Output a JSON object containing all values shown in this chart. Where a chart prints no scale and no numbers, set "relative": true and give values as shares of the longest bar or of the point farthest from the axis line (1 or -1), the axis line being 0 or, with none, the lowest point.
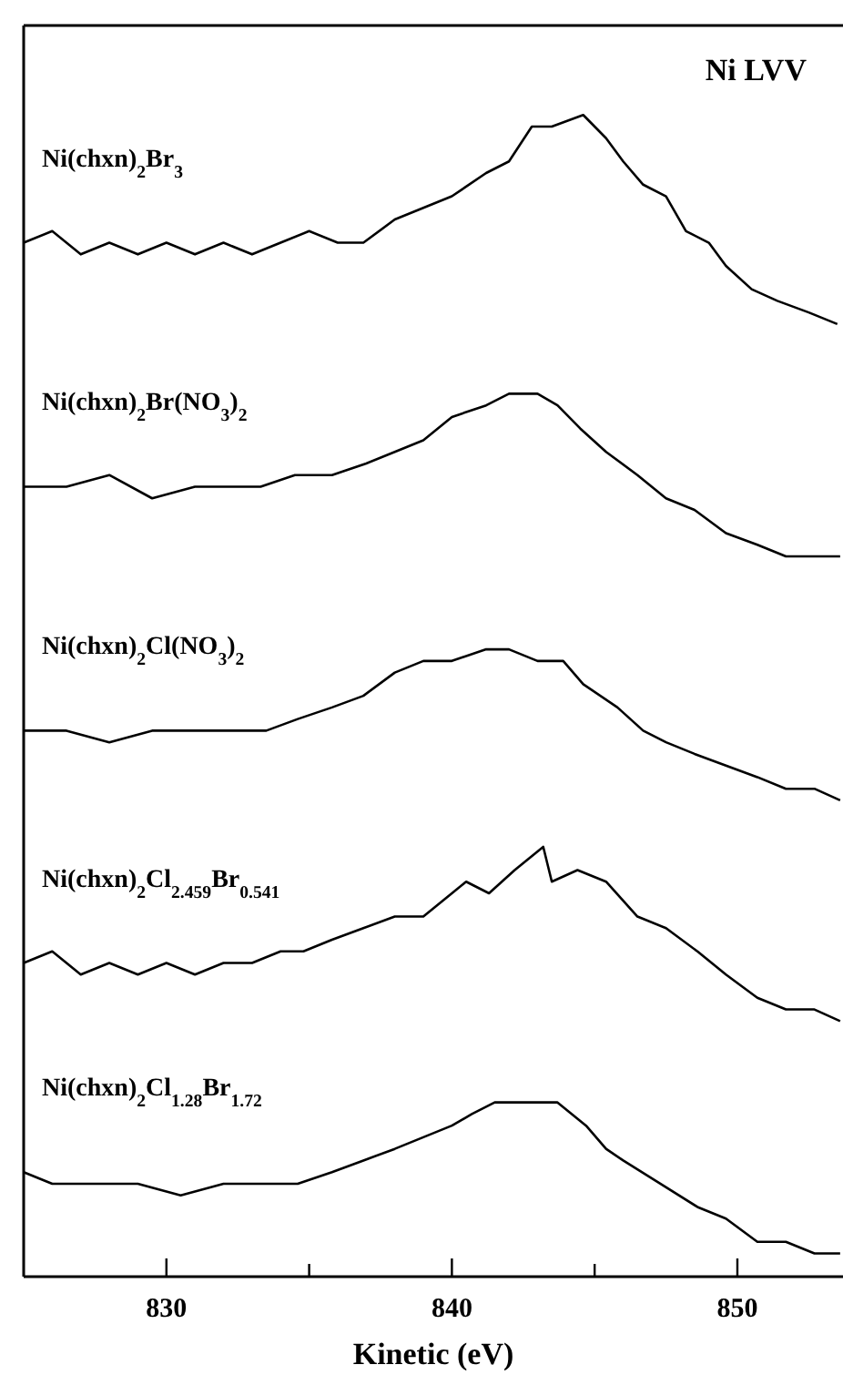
{
  "chart_data": {
    "type": "line",
    "title": "Ni LVV",
    "xlabel": "Kinetic (eV)",
    "relative": true,
    "xlim": [
      825,
      853.7
    ],
    "xticks": [
      830,
      {
        "value": 835,
        "label": null
      },
      840,
      {
        "value": 845,
        "label": null
      },
      850
    ],
    "marker": "none",
    "line_style": "solid",
    "series": [
      {
        "name": "Ni(chxn)$_{2}$Br$_{3}$",
        "color": "#000000",
        "x": [
          825,
          826,
          827,
          828,
          829,
          830,
          831,
          832,
          833,
          834,
          835,
          836,
          836.9,
          838,
          839,
          840,
          841.2,
          842,
          842.8,
          843.5,
          844.6,
          845.4,
          846,
          846.7,
          847.5,
          848.2,
          849,
          849.6,
          850.5,
          851.4,
          852.5,
          853.5
        ],
        "values": [
          0.89,
          0.9,
          0.88,
          0.89,
          0.88,
          0.89,
          0.88,
          0.89,
          0.88,
          0.89,
          0.9,
          0.89,
          0.89,
          0.91,
          0.92,
          0.93,
          0.95,
          0.96,
          0.99,
          0.99,
          1.0,
          0.98,
          0.96,
          0.94,
          0.93,
          0.9,
          0.89,
          0.87,
          0.85,
          0.84,
          0.83,
          0.82
        ]
      },
      {
        "name": "Ni(chxn)$_{2}$Br(NO$_{3}$)$_{2}$",
        "color": "#000000",
        "x": [
          825,
          826.5,
          828,
          829.5,
          831,
          832,
          833.3,
          834.5,
          835.8,
          837,
          838,
          839,
          840,
          841.2,
          842,
          843,
          843.7,
          844.5,
          845.4,
          846.5,
          847.5,
          848.5,
          849.6,
          850.7,
          851.7,
          852.7,
          853.6
        ],
        "values": [
          0.68,
          0.68,
          0.69,
          0.67,
          0.68,
          0.68,
          0.68,
          0.69,
          0.69,
          0.7,
          0.71,
          0.72,
          0.74,
          0.75,
          0.76,
          0.76,
          0.75,
          0.73,
          0.71,
          0.69,
          0.67,
          0.66,
          0.64,
          0.63,
          0.62,
          0.62,
          0.62
        ]
      },
      {
        "name": "Ni(chxn)$_{2}$Cl(NO$_{3}$)$_{2}$",
        "color": "#000000",
        "x": [
          825,
          826.5,
          828,
          829.5,
          831,
          832.5,
          833.5,
          834.6,
          835.8,
          836.9,
          838,
          839,
          840,
          841.2,
          842,
          843,
          843.9,
          844.6,
          845.8,
          846.7,
          847.5,
          848.5,
          849.6,
          850.7,
          851.7,
          852.7,
          853.6
        ],
        "values": [
          0.47,
          0.47,
          0.46,
          0.47,
          0.47,
          0.47,
          0.47,
          0.48,
          0.49,
          0.5,
          0.52,
          0.53,
          0.53,
          0.54,
          0.54,
          0.53,
          0.53,
          0.51,
          0.49,
          0.47,
          0.46,
          0.45,
          0.44,
          0.43,
          0.42,
          0.42,
          0.41
        ]
      },
      {
        "name": "Ni(chxn)$_{2}$Cl$_{2.459}$Br$_{0.541}$",
        "color": "#000000",
        "x": [
          825,
          826,
          827,
          828,
          829,
          830,
          831,
          832,
          833,
          834,
          834.8,
          835.8,
          836.9,
          838,
          839,
          840,
          840.5,
          841.3,
          842.2,
          843.2,
          843.5,
          844.4,
          845.4,
          846.5,
          847.5,
          848.6,
          849.6,
          850.7,
          851.7,
          852.7,
          853.6
        ],
        "values": [
          0.27,
          0.28,
          0.26,
          0.27,
          0.26,
          0.27,
          0.26,
          0.27,
          0.27,
          0.28,
          0.28,
          0.29,
          0.3,
          0.31,
          0.31,
          0.33,
          0.34,
          0.33,
          0.35,
          0.37,
          0.34,
          0.35,
          0.34,
          0.31,
          0.3,
          0.28,
          0.26,
          0.24,
          0.23,
          0.23,
          0.22
        ]
      },
      {
        "name": "Ni(chxn)$_{2}$Cl$_{1.28}$Br$_{1.72}$",
        "color": "#000000",
        "x": [
          825,
          826,
          827.5,
          829,
          830.5,
          832,
          833.5,
          834.6,
          835.8,
          836.9,
          838,
          839,
          840,
          840.7,
          841.5,
          842.2,
          843,
          843.7,
          844.2,
          844.7,
          845.4,
          846,
          847.3,
          848.6,
          849.6,
          850.7,
          851.7,
          852.7,
          853.6
        ],
        "values": [
          0.09,
          0.08,
          0.08,
          0.08,
          0.07,
          0.08,
          0.08,
          0.08,
          0.09,
          0.1,
          0.11,
          0.12,
          0.13,
          0.14,
          0.15,
          0.15,
          0.15,
          0.15,
          0.14,
          0.13,
          0.11,
          0.1,
          0.08,
          0.06,
          0.05,
          0.03,
          0.03,
          0.02,
          0.02
        ]
      }
    ]
  }
}
